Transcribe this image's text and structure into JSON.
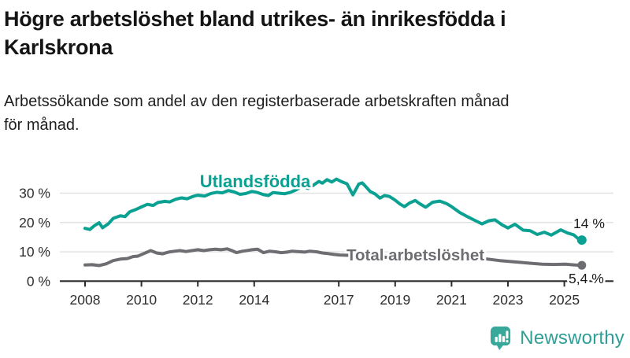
{
  "header": {
    "title_lines": [
      "Högre arbetslöshet bland utrikes- än inrikesfödda i",
      "Karlskrona"
    ],
    "subtitle_lines": [
      "Arbetssökande som andel av den registerbaserade arbetskraften månad",
      "för månad."
    ]
  },
  "footer": {
    "brand": "Newsworthy"
  },
  "colors": {
    "accent": "#0ba192",
    "secondary": "#6d6d72",
    "brand_icon": "#38a89b",
    "brand_text": "#2f9f96",
    "grid": "#e1e1e1",
    "axis": "#2d2d2d",
    "tick_text": "#2e2e2e",
    "value_text": "#1a1a1a"
  },
  "chart_data": {
    "type": "line",
    "title": "Högre arbetslöshet bland utrikes- än inrikesfödda i Karlskrona",
    "subtitle": "Arbetssökande som andel av den registerbaserade arbetskraften månad för månad.",
    "x_axis": {
      "tick_years": [
        2008,
        2010,
        2012,
        2014,
        2017,
        2019,
        2021,
        2023,
        2025
      ],
      "min": 2008.0,
      "max": 2025.7
    },
    "y_axis": {
      "ticks": [
        0,
        10,
        20,
        30
      ],
      "suffix": " %",
      "range": [
        0,
        36
      ],
      "gridlines": true
    },
    "series": [
      {
        "name": "Utlandsfödda",
        "end_label": "14 %",
        "end_value": 14.0,
        "points": [
          [
            2008.0,
            18.0
          ],
          [
            2008.17,
            17.6
          ],
          [
            2008.33,
            18.9
          ],
          [
            2008.5,
            19.9
          ],
          [
            2008.62,
            18.2
          ],
          [
            2008.83,
            19.6
          ],
          [
            2009.0,
            21.4
          ],
          [
            2009.25,
            22.3
          ],
          [
            2009.42,
            22.0
          ],
          [
            2009.58,
            23.6
          ],
          [
            2009.79,
            24.4
          ],
          [
            2010.0,
            25.3
          ],
          [
            2010.21,
            26.2
          ],
          [
            2010.42,
            25.8
          ],
          [
            2010.58,
            26.8
          ],
          [
            2010.83,
            27.2
          ],
          [
            2011.0,
            27.0
          ],
          [
            2011.21,
            27.9
          ],
          [
            2011.42,
            28.4
          ],
          [
            2011.62,
            28.1
          ],
          [
            2011.83,
            28.9
          ],
          [
            2012.0,
            29.3
          ],
          [
            2012.25,
            29.0
          ],
          [
            2012.46,
            29.9
          ],
          [
            2012.67,
            30.3
          ],
          [
            2012.87,
            30.1
          ],
          [
            2013.08,
            30.9
          ],
          [
            2013.29,
            30.4
          ],
          [
            2013.5,
            29.6
          ],
          [
            2013.71,
            29.9
          ],
          [
            2013.92,
            30.6
          ],
          [
            2014.12,
            30.2
          ],
          [
            2014.33,
            29.5
          ],
          [
            2014.5,
            29.2
          ],
          [
            2014.67,
            30.2
          ],
          [
            2014.87,
            30.0
          ],
          [
            2015.08,
            29.8
          ],
          [
            2015.29,
            30.3
          ],
          [
            2015.5,
            31.2
          ],
          [
            2015.71,
            32.3
          ],
          [
            2015.92,
            31.6
          ],
          [
            2016.08,
            32.6
          ],
          [
            2016.29,
            34.0
          ],
          [
            2016.42,
            33.4
          ],
          [
            2016.58,
            34.6
          ],
          [
            2016.75,
            33.8
          ],
          [
            2016.92,
            34.8
          ],
          [
            2017.08,
            34.0
          ],
          [
            2017.29,
            33.2
          ],
          [
            2017.5,
            29.4
          ],
          [
            2017.71,
            33.1
          ],
          [
            2017.83,
            33.5
          ],
          [
            2017.96,
            32.2
          ],
          [
            2018.12,
            30.5
          ],
          [
            2018.29,
            29.7
          ],
          [
            2018.46,
            28.3
          ],
          [
            2018.62,
            29.2
          ],
          [
            2018.79,
            28.9
          ],
          [
            2019.0,
            27.6
          ],
          [
            2019.17,
            26.3
          ],
          [
            2019.33,
            25.4
          ],
          [
            2019.5,
            26.6
          ],
          [
            2019.71,
            27.5
          ],
          [
            2019.87,
            26.4
          ],
          [
            2020.08,
            25.2
          ],
          [
            2020.33,
            26.9
          ],
          [
            2020.58,
            27.3
          ],
          [
            2020.83,
            26.4
          ],
          [
            2021.0,
            25.4
          ],
          [
            2021.29,
            23.4
          ],
          [
            2021.58,
            21.9
          ],
          [
            2021.87,
            20.5
          ],
          [
            2022.08,
            19.5
          ],
          [
            2022.33,
            20.6
          ],
          [
            2022.54,
            20.9
          ],
          [
            2022.79,
            19.2
          ],
          [
            2023.0,
            18.1
          ],
          [
            2023.25,
            19.4
          ],
          [
            2023.54,
            17.4
          ],
          [
            2023.79,
            17.2
          ],
          [
            2024.04,
            15.9
          ],
          [
            2024.29,
            16.7
          ],
          [
            2024.54,
            15.7
          ],
          [
            2024.87,
            17.5
          ],
          [
            2025.12,
            16.4
          ],
          [
            2025.33,
            15.8
          ],
          [
            2025.5,
            14.4
          ],
          [
            2025.62,
            14.0
          ]
        ]
      },
      {
        "name": "Total arbetslöshet",
        "end_label": "5,4 %",
        "end_value": 5.4,
        "points": [
          [
            2008.0,
            5.5
          ],
          [
            2008.25,
            5.6
          ],
          [
            2008.5,
            5.3
          ],
          [
            2008.75,
            5.9
          ],
          [
            2009.0,
            7.0
          ],
          [
            2009.25,
            7.5
          ],
          [
            2009.5,
            7.7
          ],
          [
            2009.71,
            8.4
          ],
          [
            2009.87,
            8.5
          ],
          [
            2010.08,
            9.4
          ],
          [
            2010.33,
            10.4
          ],
          [
            2010.54,
            9.6
          ],
          [
            2010.75,
            9.3
          ],
          [
            2010.96,
            9.9
          ],
          [
            2011.17,
            10.2
          ],
          [
            2011.37,
            10.4
          ],
          [
            2011.58,
            10.1
          ],
          [
            2011.79,
            10.4
          ],
          [
            2012.0,
            10.7
          ],
          [
            2012.21,
            10.4
          ],
          [
            2012.42,
            10.7
          ],
          [
            2012.62,
            10.9
          ],
          [
            2012.83,
            10.7
          ],
          [
            2013.04,
            11.0
          ],
          [
            2013.21,
            10.4
          ],
          [
            2013.37,
            9.7
          ],
          [
            2013.58,
            10.2
          ],
          [
            2013.79,
            10.5
          ],
          [
            2013.92,
            10.7
          ],
          [
            2014.12,
            10.9
          ],
          [
            2014.33,
            9.7
          ],
          [
            2014.54,
            10.2
          ],
          [
            2014.75,
            10.0
          ],
          [
            2014.96,
            9.7
          ],
          [
            2015.17,
            9.9
          ],
          [
            2015.33,
            10.2
          ],
          [
            2015.54,
            10.1
          ],
          [
            2015.79,
            9.9
          ],
          [
            2015.96,
            10.2
          ],
          [
            2016.21,
            10.0
          ],
          [
            2016.42,
            9.6
          ],
          [
            2016.62,
            9.4
          ],
          [
            2016.83,
            9.1
          ],
          [
            2017.04,
            8.9
          ],
          [
            2017.33,
            8.8
          ],
          [
            2017.75,
            8.6
          ],
          [
            2018.17,
            8.4
          ],
          [
            2018.58,
            8.2
          ],
          [
            2019.0,
            8.0
          ],
          [
            2019.42,
            7.8
          ],
          [
            2019.83,
            7.9
          ],
          [
            2020.25,
            9.3
          ],
          [
            2020.5,
            9.9
          ],
          [
            2020.79,
            9.6
          ],
          [
            2021.21,
            9.0
          ],
          [
            2021.62,
            8.4
          ],
          [
            2022.04,
            7.8
          ],
          [
            2022.37,
            7.4
          ],
          [
            2022.71,
            7.0
          ],
          [
            2023.04,
            6.7
          ],
          [
            2023.42,
            6.4
          ],
          [
            2023.81,
            6.1
          ],
          [
            2024.21,
            5.8
          ],
          [
            2024.62,
            5.7
          ],
          [
            2025.04,
            5.8
          ],
          [
            2025.37,
            5.5
          ],
          [
            2025.62,
            5.4
          ]
        ]
      }
    ],
    "legend_position": "inline-labels"
  }
}
